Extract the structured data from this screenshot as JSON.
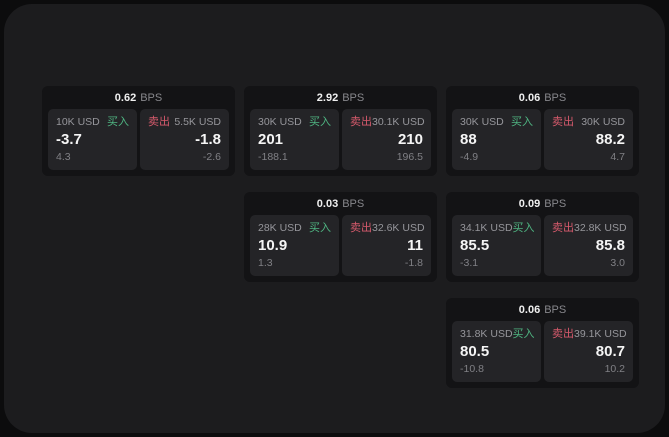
{
  "labels": {
    "bps": "BPS",
    "buy": "买入",
    "sell": "卖出"
  },
  "colors": {
    "background": "#0c0c0d",
    "surface": "#1c1c1e",
    "card": "#131315",
    "tile": "#242427",
    "buy_accent": "#4fb582",
    "sell_accent": "#d65a6c",
    "text_primary": "#f5f5f5",
    "text_secondary": "#96969b"
  },
  "cards": [
    {
      "spread": "0.62",
      "buy": {
        "size": "10K USD",
        "price": "-3.7",
        "delta": "4.3"
      },
      "sell": {
        "size": "5.5K USD",
        "price": "-1.8",
        "delta": "-2.6"
      }
    },
    {
      "spread": "2.92",
      "buy": {
        "size": "30K USD",
        "price": "201",
        "delta": "-188.1"
      },
      "sell": {
        "size": "30.1K USD",
        "price": "210",
        "delta": "196.5"
      }
    },
    {
      "spread": "0.06",
      "buy": {
        "size": "30K USD",
        "price": "88",
        "delta": "-4.9"
      },
      "sell": {
        "size": "30K USD",
        "price": "88.2",
        "delta": "4.7"
      }
    },
    {
      "spread": "0.03",
      "buy": {
        "size": "28K USD",
        "price": "10.9",
        "delta": "1.3"
      },
      "sell": {
        "size": "32.6K USD",
        "price": "11",
        "delta": "-1.8"
      }
    },
    {
      "spread": "0.09",
      "buy": {
        "size": "34.1K USD",
        "price": "85.5",
        "delta": "-3.1"
      },
      "sell": {
        "size": "32.8K USD",
        "price": "85.8",
        "delta": "3.0"
      }
    },
    {
      "spread": "0.06",
      "buy": {
        "size": "31.8K USD",
        "price": "80.5",
        "delta": "-10.8"
      },
      "sell": {
        "size": "39.1K USD",
        "price": "80.7",
        "delta": "10.2"
      }
    }
  ]
}
